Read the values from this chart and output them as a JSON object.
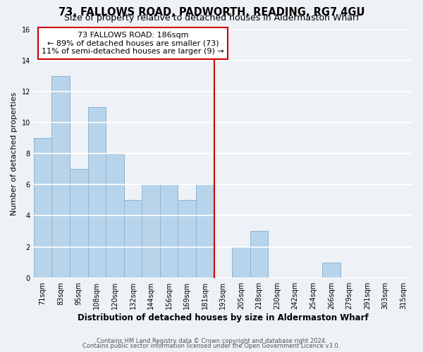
{
  "title": "73, FALLOWS ROAD, PADWORTH, READING, RG7 4GU",
  "subtitle": "Size of property relative to detached houses in Aldermaston Wharf",
  "xlabel": "Distribution of detached houses by size in Aldermaston Wharf",
  "ylabel": "Number of detached properties",
  "bin_labels": [
    "71sqm",
    "83sqm",
    "95sqm",
    "108sqm",
    "120sqm",
    "132sqm",
    "144sqm",
    "156sqm",
    "169sqm",
    "181sqm",
    "193sqm",
    "205sqm",
    "218sqm",
    "230sqm",
    "242sqm",
    "254sqm",
    "266sqm",
    "279sqm",
    "291sqm",
    "303sqm",
    "315sqm"
  ],
  "bar_heights": [
    9,
    13,
    7,
    11,
    8,
    5,
    6,
    6,
    5,
    6,
    0,
    2,
    3,
    0,
    0,
    0,
    1,
    0,
    0,
    0,
    0
  ],
  "bar_color": "#b8d4ea",
  "bar_edge_color": "#8ab4d4",
  "ylim": [
    0,
    16
  ],
  "yticks": [
    0,
    2,
    4,
    6,
    8,
    10,
    12,
    14,
    16
  ],
  "property_line_x": 9.5,
  "annotation_title": "73 FALLOWS ROAD: 186sqm",
  "annotation_line1": "← 89% of detached houses are smaller (73)",
  "annotation_line2": "11% of semi-detached houses are larger (9) →",
  "annotation_box_color": "#ffffff",
  "annotation_box_edge": "#cc0000",
  "property_line_color": "#cc0000",
  "footer1": "Contains HM Land Registry data © Crown copyright and database right 2024.",
  "footer2": "Contains public sector information licensed under the Open Government Licence v3.0.",
  "background_color": "#eef2f7",
  "grid_color": "#ffffff",
  "title_fontsize": 10.5,
  "subtitle_fontsize": 9,
  "xlabel_fontsize": 8.5,
  "ylabel_fontsize": 8,
  "tick_fontsize": 7,
  "footer_fontsize": 6,
  "ann_fontsize": 8
}
